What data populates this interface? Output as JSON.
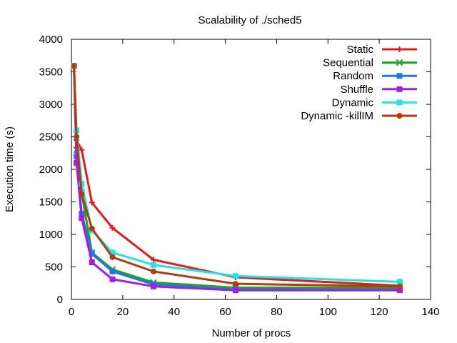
{
  "chart_data": {
    "type": "line",
    "title": "Scalability of ./sched5",
    "xlabel": "Number of procs",
    "ylabel": "Execution time (s)",
    "xlim": [
      0,
      140
    ],
    "ylim": [
      0,
      4000
    ],
    "xticks": [
      0,
      20,
      40,
      60,
      80,
      100,
      120,
      140
    ],
    "yticks": [
      0,
      500,
      1000,
      1500,
      2000,
      2500,
      3000,
      3500,
      4000
    ],
    "grid": false,
    "legend_position": "top-right",
    "series": [
      {
        "name": "Static",
        "color": "#e41a1c",
        "marker": "plus",
        "x": [
          1,
          2,
          4,
          8,
          16,
          32,
          64,
          128
        ],
        "y": [
          3590,
          2450,
          2300,
          1490,
          1100,
          610,
          340,
          210
        ]
      },
      {
        "name": "Sequential",
        "color": "#1ca51c",
        "marker": "cross",
        "x": [
          1,
          2,
          4,
          8,
          16,
          32,
          64,
          128
        ],
        "y": [
          3590,
          2300,
          1640,
          720,
          460,
          260,
          180,
          180
        ]
      },
      {
        "name": "Random",
        "color": "#1e78e6",
        "marker": "filled-square",
        "x": [
          1,
          2,
          4,
          8,
          16,
          32,
          64,
          128
        ],
        "y": [
          3590,
          2200,
          1320,
          700,
          430,
          230,
          150,
          150
        ]
      },
      {
        "name": "Shuffle",
        "color": "#a01ee6",
        "marker": "filled-square",
        "x": [
          1,
          2,
          4,
          8,
          16,
          32,
          64,
          128
        ],
        "y": [
          3590,
          2100,
          1250,
          570,
          310,
          200,
          140,
          140
        ]
      },
      {
        "name": "Dynamic",
        "color": "#1ee6e6",
        "marker": "filled-square",
        "x": [
          1,
          2,
          4,
          8,
          16,
          32,
          64,
          128
        ],
        "y": [
          3590,
          2600,
          1780,
          1060,
          720,
          530,
          360,
          270
        ]
      },
      {
        "name": "Dynamic -killIM",
        "color": "#b43c0a",
        "marker": "filled-circle",
        "x": [
          1,
          2,
          4,
          8,
          16,
          32,
          64,
          128
        ],
        "y": [
          3590,
          2500,
          1620,
          1090,
          650,
          430,
          240,
          200
        ]
      }
    ]
  }
}
